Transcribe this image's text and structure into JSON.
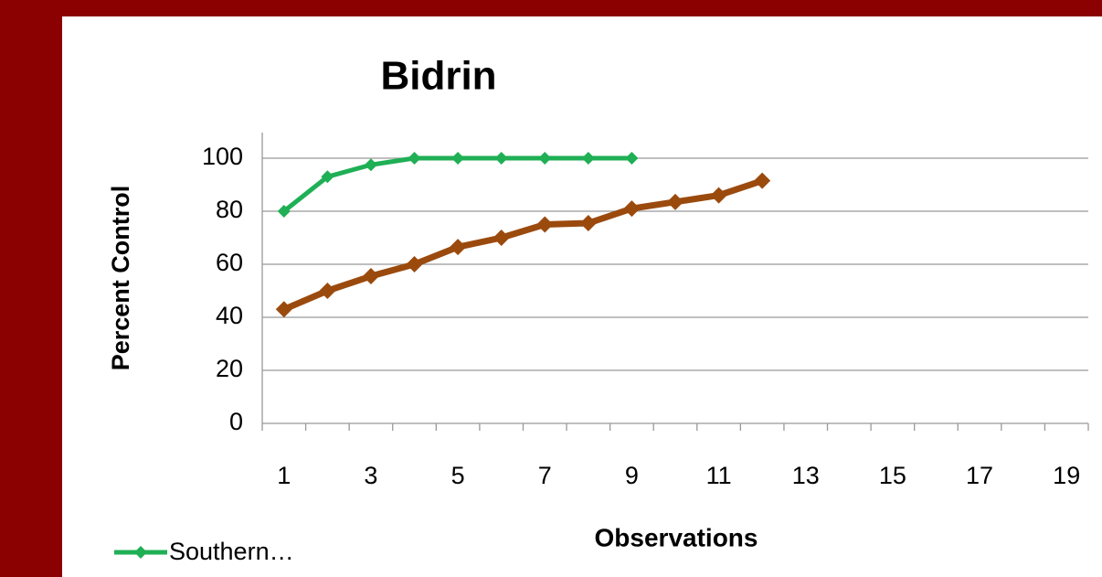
{
  "chart_data": {
    "type": "line",
    "title": "Bidrin",
    "x_label": "Observations",
    "y_label": "Percent Control",
    "categories": [
      "1",
      null,
      "3",
      null,
      "5",
      null,
      "7",
      null,
      "9",
      null,
      "11",
      null,
      "13",
      null,
      "15",
      null,
      "17",
      null,
      "19"
    ],
    "series": [
      {
        "name": "Southern…",
        "color": "#1faf55",
        "values": [
          80,
          93,
          97.5,
          100,
          100,
          100,
          100,
          100,
          100,
          null,
          null,
          null,
          null,
          null,
          null,
          null,
          null,
          null,
          null
        ]
      },
      {
        "color": "#9b4a0e",
        "values": [
          43,
          50,
          55.5,
          60,
          66.5,
          70,
          75,
          75.5,
          81,
          83.5,
          86,
          91.5,
          null,
          null,
          null,
          null,
          null,
          null,
          null
        ]
      }
    ],
    "ylim": [
      0,
      100
    ],
    "yticks": [
      0,
      20,
      40,
      60,
      80,
      100
    ],
    "grid": true
  }
}
